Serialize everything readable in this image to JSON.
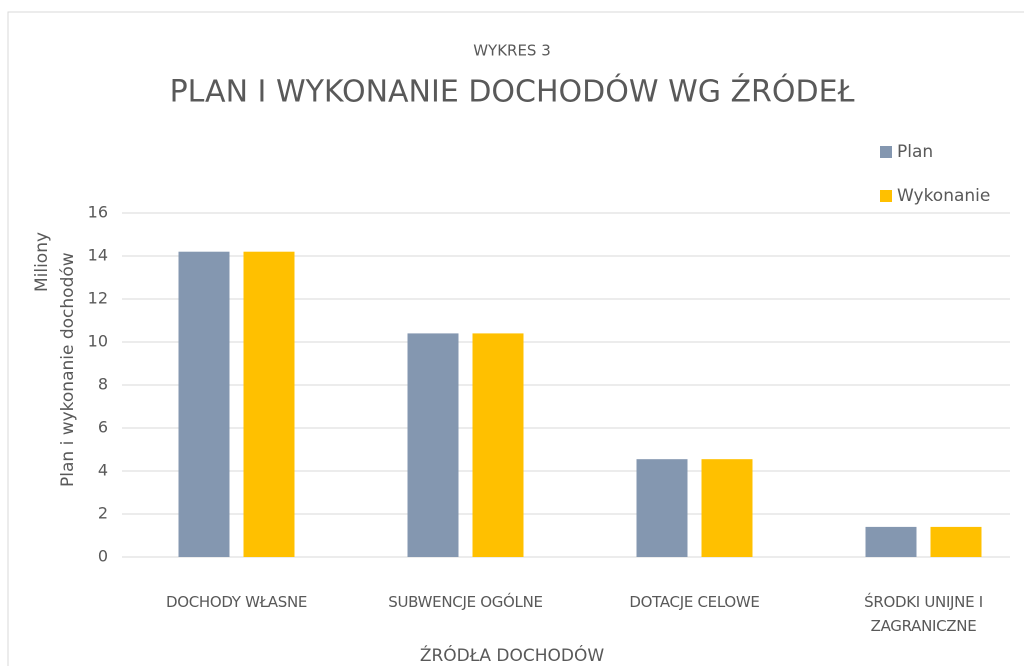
{
  "chart_data": {
    "type": "bar",
    "subtitle": "WYKRES 3",
    "title": "PLAN I WYKONANIE DOCHODÓW WG ŹRÓDEŁ",
    "y_label": "Plan i wykonanie dochodów",
    "y_units": "Miliony",
    "x_label": "ŹRÓDŁA DOCHODÓW",
    "categories": [
      "DOCHODY WŁASNE",
      "SUBWENCJE OGÓLNE",
      "DOTACJE CELOWE",
      "ŚRODKI UNIJNE I ZAGRANICZNE"
    ],
    "series": [
      {
        "name": "Plan",
        "color": "#8497b0",
        "values": [
          14.2,
          10.4,
          4.55,
          1.4
        ]
      },
      {
        "name": "Wykonanie",
        "color": "#ffc000",
        "values": [
          14.2,
          10.4,
          4.55,
          1.4
        ]
      }
    ],
    "ylim": [
      0,
      16
    ],
    "yticks": [
      0,
      2,
      4,
      6,
      8,
      10,
      12,
      14,
      16
    ],
    "grid": true,
    "legend": "top-right"
  }
}
